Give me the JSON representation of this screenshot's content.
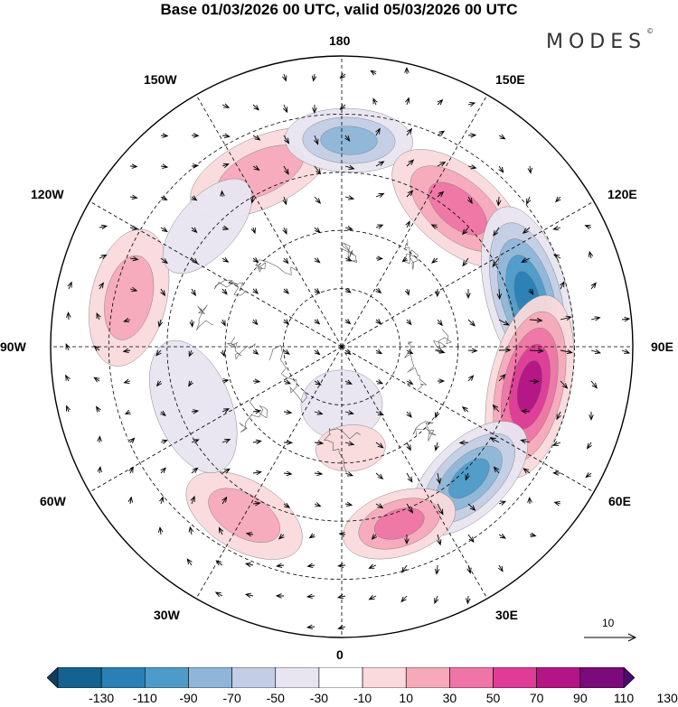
{
  "title": "Base 01/03/2026 00 UTC, valid 05/03/2026 00 UTC",
  "brand": {
    "name": "MODES",
    "mark": "©"
  },
  "longitude_labels": {
    "top": "180",
    "bottom": "0",
    "left": "90W",
    "right": "90E",
    "upper_left_1": "150W",
    "upper_left_2": "120W",
    "lower_left_1": "60W",
    "lower_left_2": "30W",
    "upper_right_1": "150E",
    "upper_right_2": "120E",
    "lower_right_1": "60E",
    "lower_right_2": "30E"
  },
  "reference_vector": {
    "label": "10"
  },
  "colorbar": {
    "ticks": [
      "-130",
      "-110",
      "-90",
      "-70",
      "-50",
      "-30",
      "-10",
      "10",
      "30",
      "50",
      "70",
      "90",
      "110",
      "130"
    ],
    "colors": [
      "#0e3e5e",
      "#15628f",
      "#2a80b4",
      "#4f9bc8",
      "#8fb6d8",
      "#c3cde5",
      "#e8e5f1",
      "#ffffff",
      "#fadadc",
      "#f5a9b9",
      "#ee75a5",
      "#de3c96",
      "#b31586",
      "#7b0a7a",
      "#4d0a6b"
    ]
  },
  "anomalies": [
    {
      "name": "pos-150W",
      "lon": -155,
      "rr": 0.66,
      "a": 0.12,
      "b": 0.26,
      "level": 2
    },
    {
      "name": "neg-180",
      "lon": 178,
      "rr": 0.71,
      "a": 0.11,
      "b": 0.22,
      "level": -3
    },
    {
      "name": "pos-150E",
      "lon": 140,
      "rr": 0.62,
      "a": 0.14,
      "b": 0.27,
      "level": 3
    },
    {
      "name": "neg-110E",
      "lon": 105,
      "rr": 0.66,
      "a": 0.14,
      "b": 0.32,
      "level": -5
    },
    {
      "name": "pos-80E",
      "lon": 78,
      "rr": 0.66,
      "a": 0.14,
      "b": 0.32,
      "level": 5
    },
    {
      "name": "neg-45E",
      "lon": 44,
      "rr": 0.63,
      "a": 0.13,
      "b": 0.25,
      "level": -4
    },
    {
      "name": "pos-20E",
      "lon": 18,
      "rr": 0.64,
      "a": 0.11,
      "b": 0.2,
      "level": 3
    },
    {
      "name": "pos-30W",
      "lon": -30,
      "rr": 0.67,
      "a": 0.12,
      "b": 0.22,
      "level": 2
    },
    {
      "name": "neg-70W",
      "lon": -68,
      "rr": 0.55,
      "a": 0.13,
      "b": 0.24,
      "level": -1
    },
    {
      "name": "pos-100W",
      "lon": -103,
      "rr": 0.75,
      "a": 0.13,
      "b": 0.24,
      "level": 2
    },
    {
      "name": "neg-135W",
      "lon": -132,
      "rr": 0.62,
      "a": 0.1,
      "b": 0.2,
      "level": -1
    },
    {
      "name": "neg-pole",
      "lon": 0,
      "rr": 0.2,
      "a": 0.12,
      "b": 0.14,
      "level": -1
    },
    {
      "name": "pos-0",
      "lon": 5,
      "rr": 0.35,
      "a": 0.08,
      "b": 0.12,
      "level": 1
    }
  ]
}
